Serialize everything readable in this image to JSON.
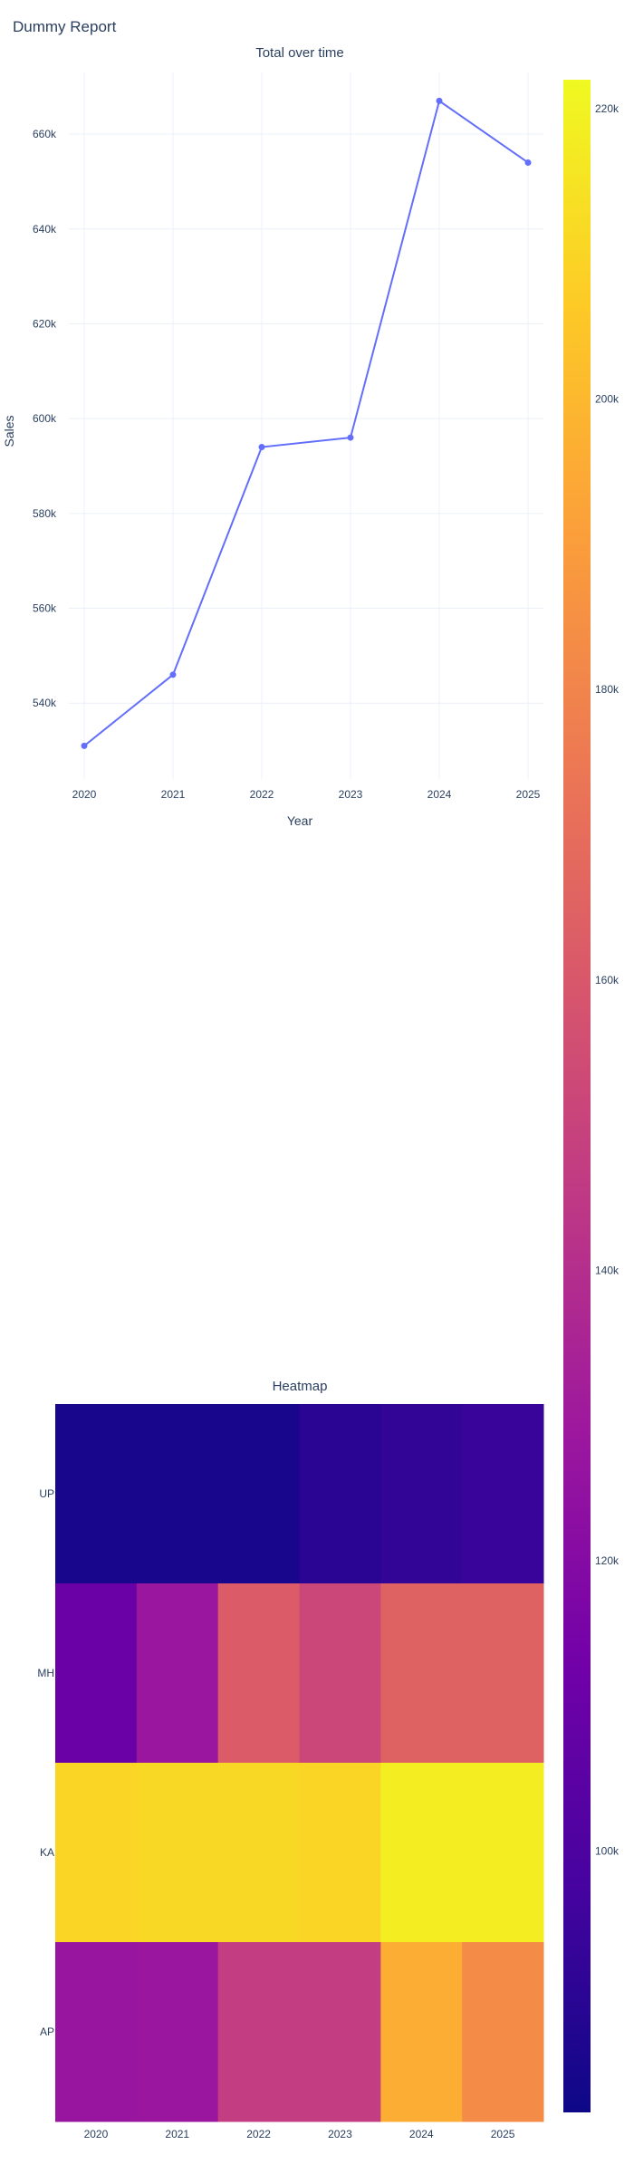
{
  "report": {
    "title": "Dummy Report"
  },
  "chart_data": [
    {
      "type": "line",
      "title": "Total over time",
      "xlabel": "Year",
      "ylabel": "Sales",
      "x": [
        "2020",
        "2021",
        "2022",
        "2023",
        "2024",
        "2025"
      ],
      "series": [
        {
          "values": [
            531000,
            546000,
            594000,
            596000,
            667000,
            654000
          ]
        }
      ],
      "ylim": [
        524000,
        673000
      ],
      "yticks": [
        540000,
        560000,
        580000,
        600000,
        620000,
        640000,
        660000
      ],
      "ytick_labels": [
        "540k",
        "560k",
        "580k",
        "600k",
        "620k",
        "640k",
        "660k"
      ],
      "grid": true,
      "line_color": "#636efa"
    },
    {
      "type": "heatmap",
      "title": "Heatmap",
      "x": [
        "2020",
        "2021",
        "2022",
        "2023",
        "2024",
        "2025"
      ],
      "y": [
        "UP",
        "MH",
        "KA",
        "AP"
      ],
      "z": [
        [
          85000,
          85000,
          85000,
          90000,
          92000,
          94000
        ],
        [
          110000,
          128000,
          162000,
          152000,
          165000,
          165000
        ],
        [
          210000,
          211000,
          211000,
          210000,
          218000,
          218000
        ],
        [
          127000,
          128000,
          147000,
          147000,
          196000,
          183000
        ]
      ],
      "colorscale": "plasma",
      "colorscale_colors": [
        "#0d0887",
        "#46039f",
        "#7201a8",
        "#9c179e",
        "#bd3786",
        "#d8576b",
        "#ed7953",
        "#fb9f3a",
        "#fdca26",
        "#f0f921"
      ],
      "zlim": [
        82000,
        222000
      ],
      "colorbar_ticks": [
        100000,
        120000,
        140000,
        160000,
        180000,
        200000,
        220000
      ],
      "colorbar_tick_labels": [
        "100k",
        "120k",
        "140k",
        "160k",
        "180k",
        "200k",
        "220k"
      ]
    }
  ]
}
